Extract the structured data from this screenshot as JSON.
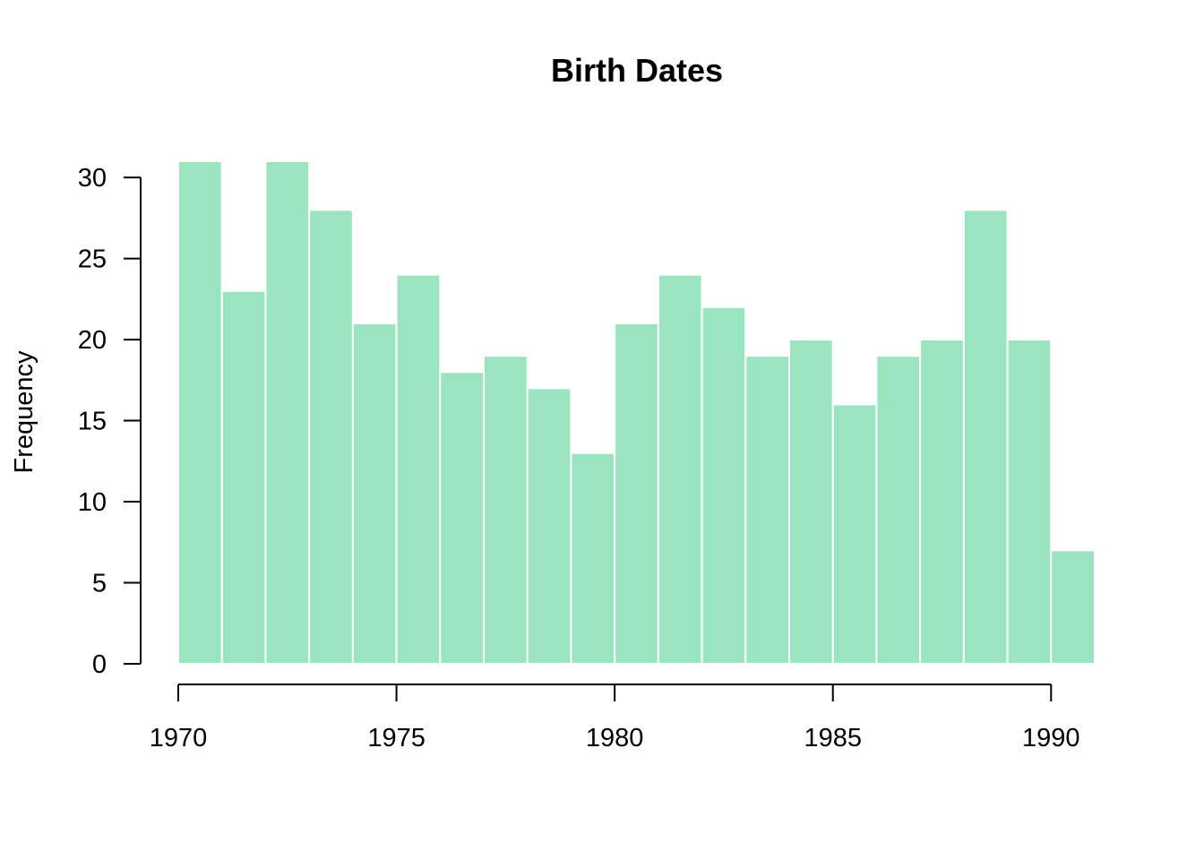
{
  "chart_data": {
    "type": "bar",
    "title": "Birth Dates",
    "xlabel": "",
    "ylabel": "Frequency",
    "bin_start": [
      1970,
      1971,
      1972,
      1973,
      1974,
      1975,
      1976,
      1977,
      1978,
      1979,
      1980,
      1981,
      1982,
      1983,
      1984,
      1985,
      1986,
      1987,
      1988,
      1989,
      1990
    ],
    "bin_width": 1,
    "values": [
      31,
      23,
      31,
      28,
      21,
      24,
      18,
      19,
      17,
      13,
      21,
      24,
      22,
      19,
      20,
      16,
      19,
      20,
      28,
      20,
      7
    ],
    "xlim": [
      1970,
      1991
    ],
    "ylim": [
      0,
      31
    ],
    "x_ticks": [
      1970,
      1975,
      1980,
      1985,
      1990
    ],
    "x_tick_labels": [
      "1970",
      "1975",
      "1980",
      "1985",
      "1990"
    ],
    "y_ticks": [
      0,
      5,
      10,
      15,
      20,
      25,
      30
    ],
    "y_tick_labels": [
      "0",
      "5",
      "10",
      "15",
      "20",
      "25",
      "30"
    ],
    "grid": false,
    "legend": "none",
    "bar_color": "#9ae5c0",
    "bar_border_color": "#ffffff"
  }
}
